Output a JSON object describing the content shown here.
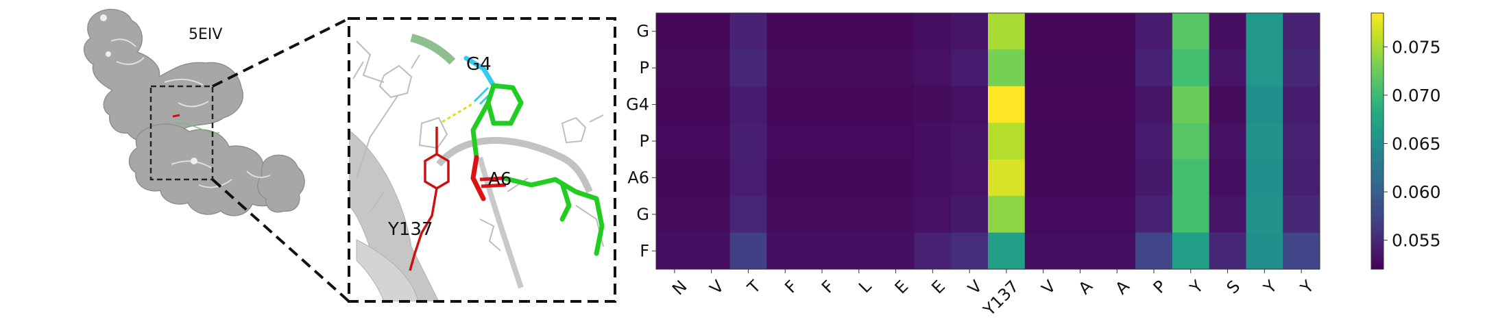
{
  "structure": {
    "pdb_label": "5EIV",
    "residue_labels": [
      "G4",
      "A6",
      "Y137"
    ],
    "colors": {
      "surface": "#9a9a9a",
      "ligand": "#22cc22",
      "tyrosine": "#cc1111",
      "glycine": "#33ccee",
      "oxygen": "#dd1111",
      "hbond": "#dddd22",
      "sticks": "#bdbdbd"
    }
  },
  "chart_data": {
    "type": "heatmap",
    "title": "",
    "xlabel": "",
    "ylabel": "",
    "colormap": "viridis",
    "color_range": [
      0.052,
      0.0785
    ],
    "colorbar_ticks": [
      "0.055",
      "0.060",
      "0.065",
      "0.070",
      "0.075"
    ],
    "colorbar_tick_values": [
      0.055,
      0.06,
      0.065,
      0.07,
      0.075
    ],
    "rows": [
      "G",
      "P",
      "G4",
      "P",
      "A6",
      "G",
      "F"
    ],
    "columns": [
      "N",
      "V",
      "T",
      "F",
      "F",
      "L",
      "E",
      "E",
      "V",
      "Y137",
      "V",
      "A",
      "A",
      "P",
      "Y",
      "S",
      "Y",
      "Y"
    ],
    "values": [
      [
        0.0525,
        0.0525,
        0.0545,
        0.0525,
        0.0525,
        0.0525,
        0.0525,
        0.053,
        0.0535,
        0.075,
        0.0525,
        0.0525,
        0.0525,
        0.054,
        0.0715,
        0.053,
        0.066,
        0.0545
      ],
      [
        0.0528,
        0.0528,
        0.055,
        0.0528,
        0.0528,
        0.0528,
        0.0528,
        0.0532,
        0.054,
        0.073,
        0.0526,
        0.0526,
        0.0526,
        0.0545,
        0.0705,
        0.0535,
        0.066,
        0.055
      ],
      [
        0.0525,
        0.0525,
        0.054,
        0.0525,
        0.0525,
        0.0525,
        0.0525,
        0.0528,
        0.0532,
        0.0785,
        0.0525,
        0.0525,
        0.0525,
        0.0535,
        0.0725,
        0.0528,
        0.065,
        0.054
      ],
      [
        0.0527,
        0.0527,
        0.0543,
        0.0527,
        0.0527,
        0.0527,
        0.0527,
        0.053,
        0.0535,
        0.0755,
        0.0526,
        0.0526,
        0.0526,
        0.054,
        0.0715,
        0.0532,
        0.0655,
        0.0545
      ],
      [
        0.0526,
        0.0526,
        0.0542,
        0.0526,
        0.0526,
        0.0526,
        0.0526,
        0.053,
        0.0534,
        0.077,
        0.0526,
        0.0526,
        0.0526,
        0.0538,
        0.0705,
        0.053,
        0.065,
        0.0543
      ],
      [
        0.0528,
        0.0528,
        0.0548,
        0.0528,
        0.0528,
        0.0528,
        0.0528,
        0.0532,
        0.0538,
        0.074,
        0.0527,
        0.0527,
        0.0527,
        0.0545,
        0.0705,
        0.0535,
        0.0655,
        0.055
      ],
      [
        0.053,
        0.053,
        0.057,
        0.053,
        0.053,
        0.053,
        0.053,
        0.0545,
        0.0555,
        0.067,
        0.053,
        0.053,
        0.053,
        0.0575,
        0.067,
        0.055,
        0.065,
        0.0575
      ]
    ]
  }
}
